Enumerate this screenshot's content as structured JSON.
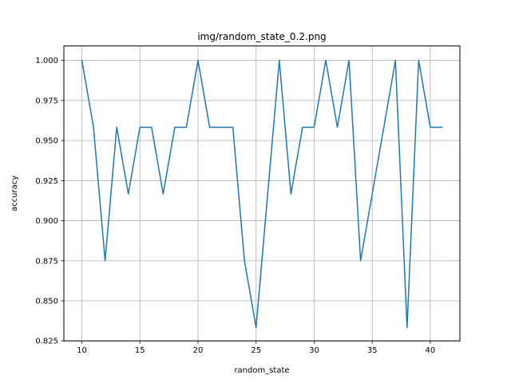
{
  "chart_data": {
    "type": "line",
    "title": "img/random_state_0.2.png",
    "xlabel": "random_state",
    "ylabel": "accuracy",
    "xlim": [
      8.45,
      42.55
    ],
    "ylim": [
      0.825,
      1.009
    ],
    "xticks": [
      10,
      15,
      20,
      25,
      30,
      35,
      40
    ],
    "xtick_labels": [
      "10",
      "15",
      "20",
      "25",
      "30",
      "35",
      "40"
    ],
    "yticks": [
      0.825,
      0.85,
      0.875,
      0.9,
      0.925,
      0.95,
      0.975,
      1.0
    ],
    "ytick_labels": [
      "0.825",
      "0.850",
      "0.875",
      "0.900",
      "0.925",
      "0.950",
      "0.975",
      "1.000"
    ],
    "grid": true,
    "series": [
      {
        "color": "#1f77b4",
        "x": [
          10,
          11,
          12,
          13,
          14,
          15,
          16,
          17,
          18,
          19,
          20,
          21,
          22,
          23,
          24,
          25,
          26,
          27,
          28,
          29,
          30,
          31,
          32,
          33,
          34,
          35,
          36,
          37,
          38,
          39,
          40,
          41
        ],
        "y": [
          1.0,
          0.9583,
          0.875,
          0.9583,
          0.9167,
          0.9583,
          0.9583,
          0.9167,
          0.9583,
          0.9583,
          1.0,
          0.9583,
          0.9583,
          0.9583,
          0.875,
          0.8333,
          0.9167,
          1.0,
          0.9167,
          0.9583,
          0.9583,
          1.0,
          0.9583,
          1.0,
          0.875,
          0.9167,
          0.9583,
          1.0,
          0.8333,
          1.0,
          0.9583,
          0.9583
        ]
      }
    ]
  }
}
